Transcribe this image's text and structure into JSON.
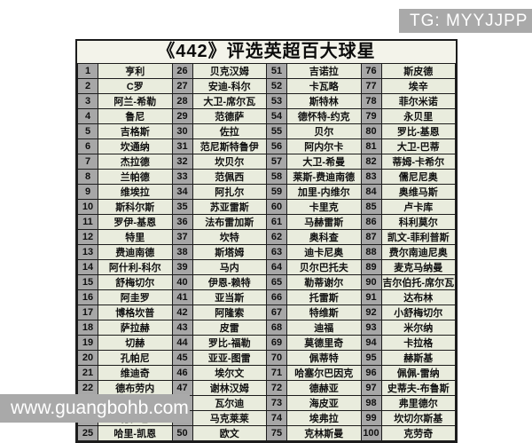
{
  "title": "《442》评选英超百大球星",
  "watermarks": {
    "tg": "TG: MYYJJPP",
    "site": "www.guangbohb.com"
  },
  "colors": {
    "rank_cell_bg": "#a7a7a7",
    "name_cell_bg": "#e9ecdd",
    "board_bg": "#f3f3ea",
    "border": "#1c1c1c",
    "badge_bg": "#a9a9a9",
    "badge_text": "#ffffff"
  },
  "table": {
    "rows_per_column": 25,
    "groups": [
      {
        "entries": [
          {
            "rank": "1",
            "name": "亨利"
          },
          {
            "rank": "2",
            "name": "C罗"
          },
          {
            "rank": "3",
            "name": "阿兰-希勒"
          },
          {
            "rank": "4",
            "name": "鲁尼"
          },
          {
            "rank": "5",
            "name": "吉格斯"
          },
          {
            "rank": "6",
            "name": "坎通纳"
          },
          {
            "rank": "7",
            "name": "杰拉德"
          },
          {
            "rank": "8",
            "name": "兰帕德"
          },
          {
            "rank": "9",
            "name": "维埃拉"
          },
          {
            "rank": "10",
            "name": "斯科尔斯"
          },
          {
            "rank": "11",
            "name": "罗伊-基恩"
          },
          {
            "rank": "12",
            "name": "特里"
          },
          {
            "rank": "13",
            "name": "费迪南德"
          },
          {
            "rank": "14",
            "name": "阿什利-科尔"
          },
          {
            "rank": "15",
            "name": "舒梅切尔"
          },
          {
            "rank": "16",
            "name": "阿圭罗"
          },
          {
            "rank": "17",
            "name": "博格坎普"
          },
          {
            "rank": "18",
            "name": "萨拉赫"
          },
          {
            "rank": "19",
            "name": "切赫"
          },
          {
            "rank": "20",
            "name": "孔帕尼"
          },
          {
            "rank": "21",
            "name": "维迪奇"
          },
          {
            "rank": "22",
            "name": "德布劳内"
          },
          {
            "rank": "23",
            "name": "范戴克"
          },
          {
            "rank": "24",
            "name": "德罗巴"
          },
          {
            "rank": "25",
            "name": "哈里-凯恩"
          }
        ]
      },
      {
        "entries": [
          {
            "rank": "26",
            "name": "贝克汉姆"
          },
          {
            "rank": "27",
            "name": "安迪-科尔"
          },
          {
            "rank": "28",
            "name": "大卫-席尔瓦"
          },
          {
            "rank": "29",
            "name": "范德萨"
          },
          {
            "rank": "30",
            "name": "佐拉"
          },
          {
            "rank": "31",
            "name": "范尼斯特鲁伊"
          },
          {
            "rank": "32",
            "name": "坎贝尔"
          },
          {
            "rank": "33",
            "name": "范佩西"
          },
          {
            "rank": "34",
            "name": "阿扎尔"
          },
          {
            "rank": "35",
            "name": "苏亚雷斯"
          },
          {
            "rank": "36",
            "name": "法布雷加斯"
          },
          {
            "rank": "37",
            "name": "坎特"
          },
          {
            "rank": "38",
            "name": "斯塔姆"
          },
          {
            "rank": "39",
            "name": "马内"
          },
          {
            "rank": "40",
            "name": "伊恩-赖特"
          },
          {
            "rank": "41",
            "name": "亚当斯"
          },
          {
            "rank": "42",
            "name": "阿隆索"
          },
          {
            "rank": "43",
            "name": "皮雷"
          },
          {
            "rank": "44",
            "name": "罗比-福勒"
          },
          {
            "rank": "45",
            "name": "亚亚-图雷"
          },
          {
            "rank": "46",
            "name": "埃尔文"
          },
          {
            "rank": "47",
            "name": "谢林汉姆"
          },
          {
            "rank": "48",
            "name": "瓦尔迪"
          },
          {
            "rank": "49",
            "name": "马克莱莱"
          },
          {
            "rank": "50",
            "name": "欧文"
          }
        ]
      },
      {
        "entries": [
          {
            "rank": "51",
            "name": "吉诺拉"
          },
          {
            "rank": "52",
            "name": "卡瓦略"
          },
          {
            "rank": "53",
            "name": "斯特林"
          },
          {
            "rank": "54",
            "name": "德怀特-约克"
          },
          {
            "rank": "55",
            "name": "贝尔"
          },
          {
            "rank": "56",
            "name": "阿内尔卡"
          },
          {
            "rank": "57",
            "name": "大卫-希曼"
          },
          {
            "rank": "58",
            "name": "莱斯-费迪南德"
          },
          {
            "rank": "59",
            "name": "加里-内维尔"
          },
          {
            "rank": "60",
            "name": "卡里克"
          },
          {
            "rank": "61",
            "name": "马赫雷斯"
          },
          {
            "rank": "62",
            "name": "奥科查"
          },
          {
            "rank": "63",
            "name": "迪卡尼奥"
          },
          {
            "rank": "64",
            "name": "贝尔巴托夫"
          },
          {
            "rank": "65",
            "name": "勒蒂谢尔"
          },
          {
            "rank": "66",
            "name": "托雷斯"
          },
          {
            "rank": "67",
            "name": "特维斯"
          },
          {
            "rank": "68",
            "name": "迪福"
          },
          {
            "rank": "69",
            "name": "莫德里奇"
          },
          {
            "rank": "70",
            "name": "佩蒂特"
          },
          {
            "rank": "71",
            "name": "哈塞尔巴因克"
          },
          {
            "rank": "72",
            "name": "德赫亚"
          },
          {
            "rank": "73",
            "name": "海皮亚"
          },
          {
            "rank": "74",
            "name": "埃弗拉"
          },
          {
            "rank": "75",
            "name": "克林斯曼"
          }
        ]
      },
      {
        "entries": [
          {
            "rank": "76",
            "name": "斯皮德"
          },
          {
            "rank": "77",
            "name": "埃辛"
          },
          {
            "rank": "78",
            "name": "菲尔米诺"
          },
          {
            "rank": "79",
            "name": "永贝里"
          },
          {
            "rank": "80",
            "name": "罗比-基恩"
          },
          {
            "rank": "81",
            "name": "大卫-巴蒂"
          },
          {
            "rank": "82",
            "name": "蒂姆-卡希尔"
          },
          {
            "rank": "83",
            "name": "儒尼尼奥"
          },
          {
            "rank": "84",
            "name": "奥维马斯"
          },
          {
            "rank": "85",
            "name": "卢卡库"
          },
          {
            "rank": "86",
            "name": "科利莫尔"
          },
          {
            "rank": "87",
            "name": "凯文-菲利普斯"
          },
          {
            "rank": "88",
            "name": "费尔南迪尼奥"
          },
          {
            "rank": "89",
            "name": "麦克马纳曼"
          },
          {
            "rank": "90",
            "name": "吉尔伯托-席尔瓦"
          },
          {
            "rank": "91",
            "name": "达布林"
          },
          {
            "rank": "92",
            "name": "小舒梅切尔"
          },
          {
            "rank": "93",
            "name": "米尔纳"
          },
          {
            "rank": "94",
            "name": "卡拉格"
          },
          {
            "rank": "95",
            "name": "赫斯基"
          },
          {
            "rank": "96",
            "name": "佩佩-雷纳"
          },
          {
            "rank": "97",
            "name": "史蒂夫-布鲁斯"
          },
          {
            "rank": "98",
            "name": "弗里德尔"
          },
          {
            "rank": "99",
            "name": "坎切尔斯基"
          },
          {
            "rank": "100",
            "name": "克劳奇"
          }
        ]
      }
    ]
  }
}
